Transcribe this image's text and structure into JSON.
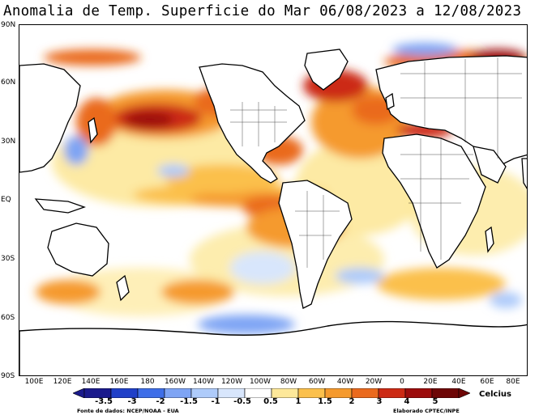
{
  "title": "Anomalia de Temp. Superficie do Mar 06/08/2023 a 12/08/2023",
  "lat_labels": [
    "90N",
    "60N",
    "30N",
    "EQ",
    "30S",
    "60S",
    "90S"
  ],
  "lon_labels": [
    "100E",
    "120E",
    "140E",
    "160E",
    "180",
    "160W",
    "140W",
    "120W",
    "100W",
    "80W",
    "60W",
    "40W",
    "20W",
    "0",
    "20E",
    "40E",
    "60E",
    "80E"
  ],
  "legend": {
    "values": [
      "-3.5",
      "-3",
      "-2",
      "-1.5",
      "-1",
      "-0.5",
      "0.5",
      "1",
      "1.5",
      "2",
      "3",
      "4",
      "5"
    ],
    "colors": [
      "#1a1a8c",
      "#2040c8",
      "#3e6ee8",
      "#7ea4f4",
      "#aecbfa",
      "#d8e6fc",
      "#ffffff",
      "#fde89a",
      "#fbc04c",
      "#f59a2e",
      "#ea6a1e",
      "#cc2a14",
      "#9c0c0c",
      "#6e0606"
    ],
    "unit": "Celcius"
  },
  "credits": {
    "source": "Fonte de dados: NCEP/NOAA - EUA",
    "author": "Elaborado CPTEC/INPE"
  }
}
